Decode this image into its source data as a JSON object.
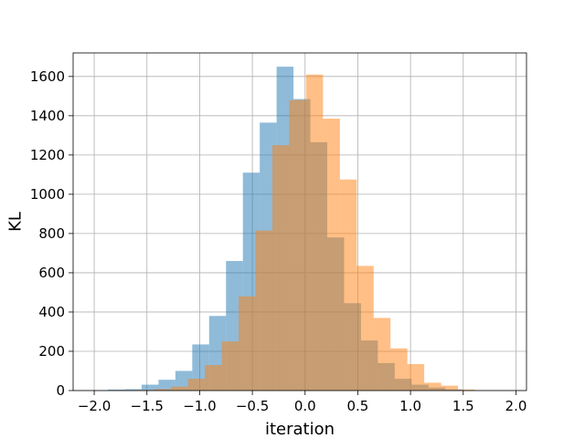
{
  "chart_data": {
    "type": "bar",
    "title": "",
    "xlabel": "iteration",
    "ylabel": "KL",
    "xlim": [
      -2.2,
      2.1
    ],
    "ylim": [
      0,
      1720
    ],
    "grid": true,
    "legend": "none",
    "xticks": [
      -2.0,
      -1.5,
      -1.0,
      -0.5,
      0.0,
      0.5,
      1.0,
      1.5,
      2.0
    ],
    "xtick_labels": [
      "−2.0",
      "−1.5",
      "−1.0",
      "−0.5",
      "0.0",
      "0.5",
      "1.0",
      "1.5",
      "2.0"
    ],
    "yticks": [
      0,
      200,
      400,
      600,
      800,
      1000,
      1200,
      1400,
      1600
    ],
    "ytick_labels": [
      "0",
      "200",
      "400",
      "600",
      "800",
      "1000",
      "1200",
      "1400",
      "1600"
    ],
    "series": [
      {
        "color": "#1f77b4",
        "opacity": 0.5,
        "bin_edges": [
          -2.03,
          -1.87,
          -1.71,
          -1.55,
          -1.39,
          -1.23,
          -1.07,
          -0.91,
          -0.75,
          -0.59,
          -0.43,
          -0.27,
          -0.11,
          0.05,
          0.21,
          0.37,
          0.53,
          0.69,
          0.85,
          1.01,
          1.17,
          1.33,
          1.49,
          1.65,
          1.81,
          1.97
        ],
        "values": [
          2,
          5,
          7,
          30,
          55,
          100,
          235,
          380,
          660,
          1110,
          1365,
          1650,
          1485,
          1265,
          780,
          445,
          255,
          140,
          60,
          30,
          15,
          6,
          2,
          1,
          1
        ]
      },
      {
        "color": "#ff7f0e",
        "opacity": 0.5,
        "bin_edges": [
          -1.75,
          -1.59,
          -1.43,
          -1.27,
          -1.11,
          -0.95,
          -0.79,
          -0.63,
          -0.47,
          -0.31,
          -0.15,
          0.01,
          0.17,
          0.33,
          0.49,
          0.65,
          0.81,
          0.97,
          1.13,
          1.29,
          1.45,
          1.61
        ],
        "values": [
          1,
          3,
          8,
          20,
          60,
          130,
          250,
          480,
          815,
          1250,
          1480,
          1610,
          1385,
          1075,
          635,
          370,
          215,
          135,
          40,
          25,
          5
        ]
      }
    ]
  }
}
